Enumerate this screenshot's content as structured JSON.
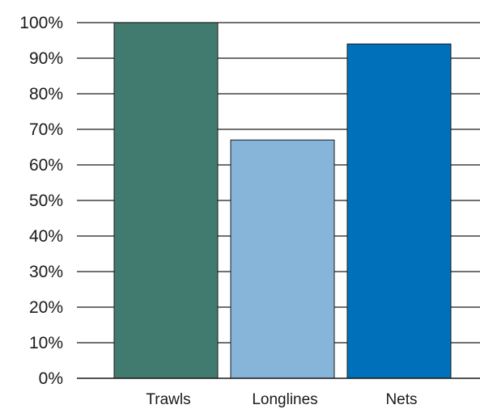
{
  "chart_data": {
    "type": "bar",
    "title": "",
    "xlabel": "",
    "ylabel": "",
    "categories": [
      "Trawls",
      "Longlines",
      "Nets"
    ],
    "values": [
      100,
      67,
      94
    ],
    "ylim": [
      0,
      100
    ],
    "y_ticks": [
      0,
      10,
      20,
      30,
      40,
      50,
      60,
      70,
      80,
      90,
      100
    ],
    "y_tick_labels": [
      "0%",
      "10%",
      "20%",
      "30%",
      "40%",
      "50%",
      "60%",
      "70%",
      "80%",
      "90%",
      "100%"
    ],
    "bar_colors": [
      "#417a6f",
      "#86b5d9",
      "#0070bb"
    ],
    "bar_outline": "#1a1a1a",
    "gridlines": true,
    "legend": "none"
  }
}
